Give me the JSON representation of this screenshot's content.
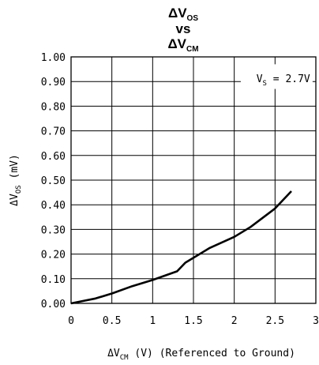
{
  "chart_data": {
    "type": "line",
    "title": {
      "line1": {
        "main": "ΔV",
        "sub": "OS"
      },
      "line2": "vs",
      "line3": {
        "main": "ΔV",
        "sub": "CM"
      }
    },
    "xlabel": {
      "pre": "ΔV",
      "sub": "CM",
      "post": " (V) (Referenced to Ground)"
    },
    "ylabel": {
      "pre": "ΔV",
      "sub": "OS",
      "post": " (mV)"
    },
    "annotation": {
      "pre": "V",
      "sub": "S",
      "post": " = 2.7V"
    },
    "xlim": [
      0,
      3
    ],
    "ylim": [
      0,
      1
    ],
    "x_ticks": [
      0,
      0.5,
      1,
      1.5,
      2,
      2.5,
      3
    ],
    "x_tick_labels": [
      "0",
      "0.5",
      "1",
      "1.5",
      "2",
      "2.5",
      "3"
    ],
    "y_ticks": [
      0,
      0.1,
      0.2,
      0.3,
      0.4,
      0.5,
      0.6,
      0.7,
      0.8,
      0.9,
      1.0
    ],
    "y_tick_labels": [
      "0.00",
      "0.10",
      "0.20",
      "0.30",
      "0.40",
      "0.50",
      "0.60",
      "0.70",
      "0.80",
      "0.90",
      "1.00"
    ],
    "grid": true,
    "series": [
      {
        "color": "#000000",
        "x": [
          0,
          0.3,
          0.5,
          0.75,
          1.0,
          1.3,
          1.4,
          1.7,
          2.0,
          2.2,
          2.5,
          2.7
        ],
        "y": [
          0,
          0.02,
          0.04,
          0.07,
          0.095,
          0.13,
          0.165,
          0.225,
          0.27,
          0.31,
          0.385,
          0.455
        ]
      }
    ]
  }
}
